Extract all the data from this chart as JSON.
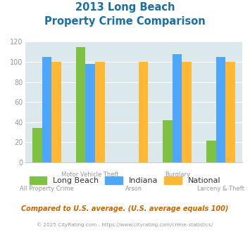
{
  "title_line1": "2013 Long Beach",
  "title_line2": "Property Crime Comparison",
  "categories": [
    "All Property Crime",
    "Motor Vehicle Theft",
    "Arson",
    "Burglary",
    "Larceny & Theft"
  ],
  "top_labels": [
    "",
    "Motor Vehicle Theft",
    "",
    "Burglary",
    ""
  ],
  "bot_labels": [
    "All Property Crime",
    "",
    "Arson",
    "",
    "Larceny & Theft"
  ],
  "series": {
    "Long Beach": [
      34,
      115,
      null,
      42,
      22
    ],
    "Indiana": [
      105,
      98,
      null,
      108,
      105
    ],
    "National": [
      100,
      100,
      100,
      100,
      100
    ]
  },
  "colors": {
    "Long Beach": "#7fc241",
    "Indiana": "#4da6ff",
    "National": "#ffb833"
  },
  "ylim": [
    0,
    120
  ],
  "yticks": [
    0,
    20,
    40,
    60,
    80,
    100,
    120
  ],
  "bg_color": "#dce9ec",
  "title_color": "#1a6fa8",
  "axis_label_color": "#9b9b9b",
  "footer_text": "Compared to U.S. average. (U.S. average equals 100)",
  "footer_color": "#cc6600",
  "copyright_text": "© 2025 CityRating.com - https://www.cityrating.com/crime-statistics/",
  "copyright_color": "#9b9b9b",
  "bar_width": 0.22
}
